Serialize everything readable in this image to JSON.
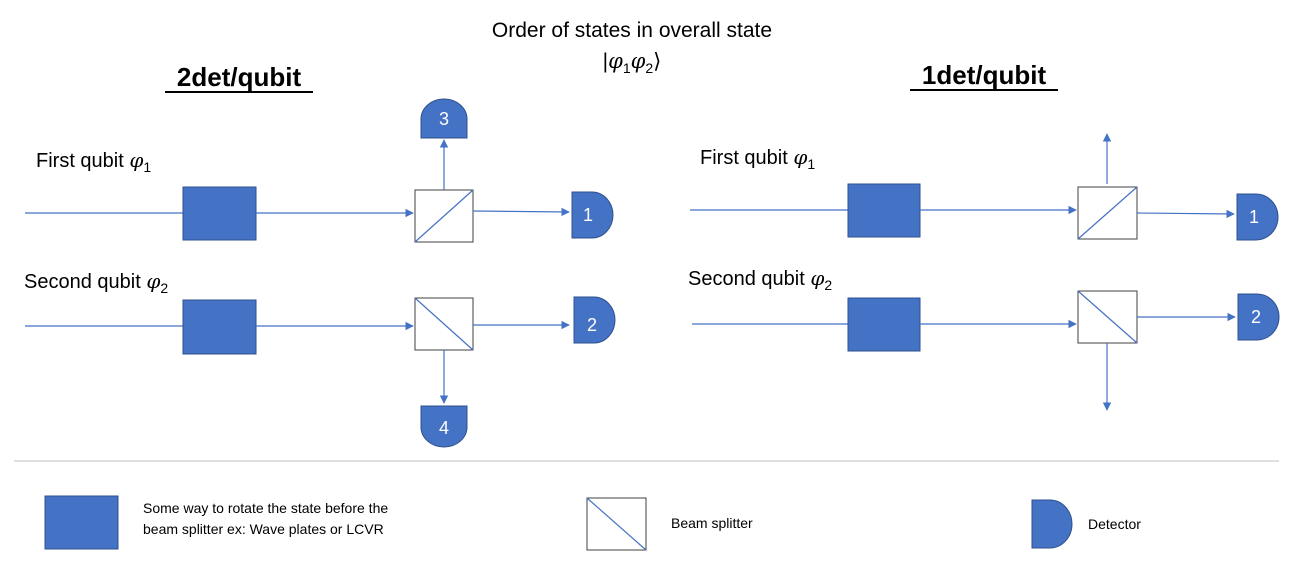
{
  "title": {
    "line1": "Order of states in overall state",
    "ket_open": "|",
    "phi": "φ",
    "sub1": "1",
    "sub2": "2",
    "ket_close": "⟩"
  },
  "left": {
    "heading": "2det/qubit",
    "first_label": "First qubit ",
    "second_label": "Second qubit ",
    "phi": "φ",
    "sub1": "1",
    "sub2": "2",
    "detectors": [
      "1",
      "2",
      "3",
      "4"
    ]
  },
  "right": {
    "heading": "1det/qubit",
    "first_label": "First qubit ",
    "second_label": "Second qubit ",
    "phi": "φ",
    "sub1": "1",
    "sub2": "2",
    "detectors": [
      "1",
      "2"
    ]
  },
  "legend": {
    "rotator_line1": "Some way to rotate the state before the",
    "rotator_line2": "beam splitter ex: Wave plates or LCVR",
    "splitter": "Beam splitter",
    "detector": "Detector"
  },
  "colors": {
    "accent": "#4472C4",
    "stroke": "#2F528F",
    "line": "#4472C4",
    "divider": "#BFBFBF"
  }
}
